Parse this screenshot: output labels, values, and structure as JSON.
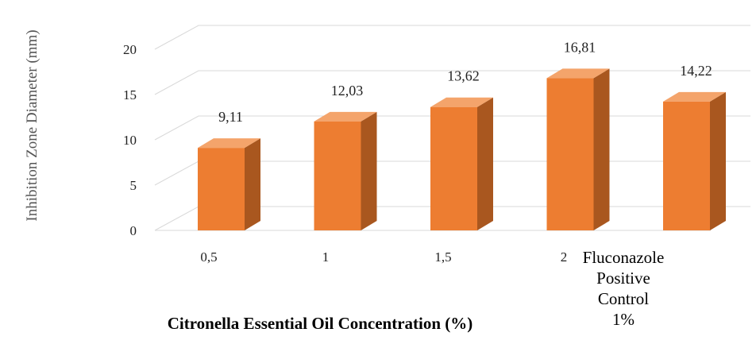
{
  "chart_data": {
    "type": "bar",
    "style": "3d-column",
    "categories": [
      "0,5",
      "1",
      "1,5",
      "2",
      "Fluconazole Positive Control 1%"
    ],
    "category_lines": [
      [
        "0,5"
      ],
      [
        "1"
      ],
      [
        "1,5"
      ],
      [
        "2"
      ],
      [
        "Fluconazole",
        "Positive",
        "Control",
        "1%"
      ]
    ],
    "values": [
      9.11,
      12.03,
      13.62,
      16.81,
      14.22
    ],
    "value_labels": [
      "9,11",
      "12,03",
      "13,62",
      "16,81",
      "14,22"
    ],
    "xlabel": "Citronella Essential Oil Concentration (%)",
    "ylabel": "Inhibition Zone Diameter (mm)",
    "ylim": [
      0,
      20
    ],
    "yticks": [
      0,
      5,
      10,
      15,
      20
    ],
    "grid": true,
    "legend": "none",
    "colors": {
      "bar_front": "#ED7D31",
      "bar_top": "#F4A46B",
      "bar_side": "#A9571F",
      "gridline": "#d9d9d9"
    }
  }
}
